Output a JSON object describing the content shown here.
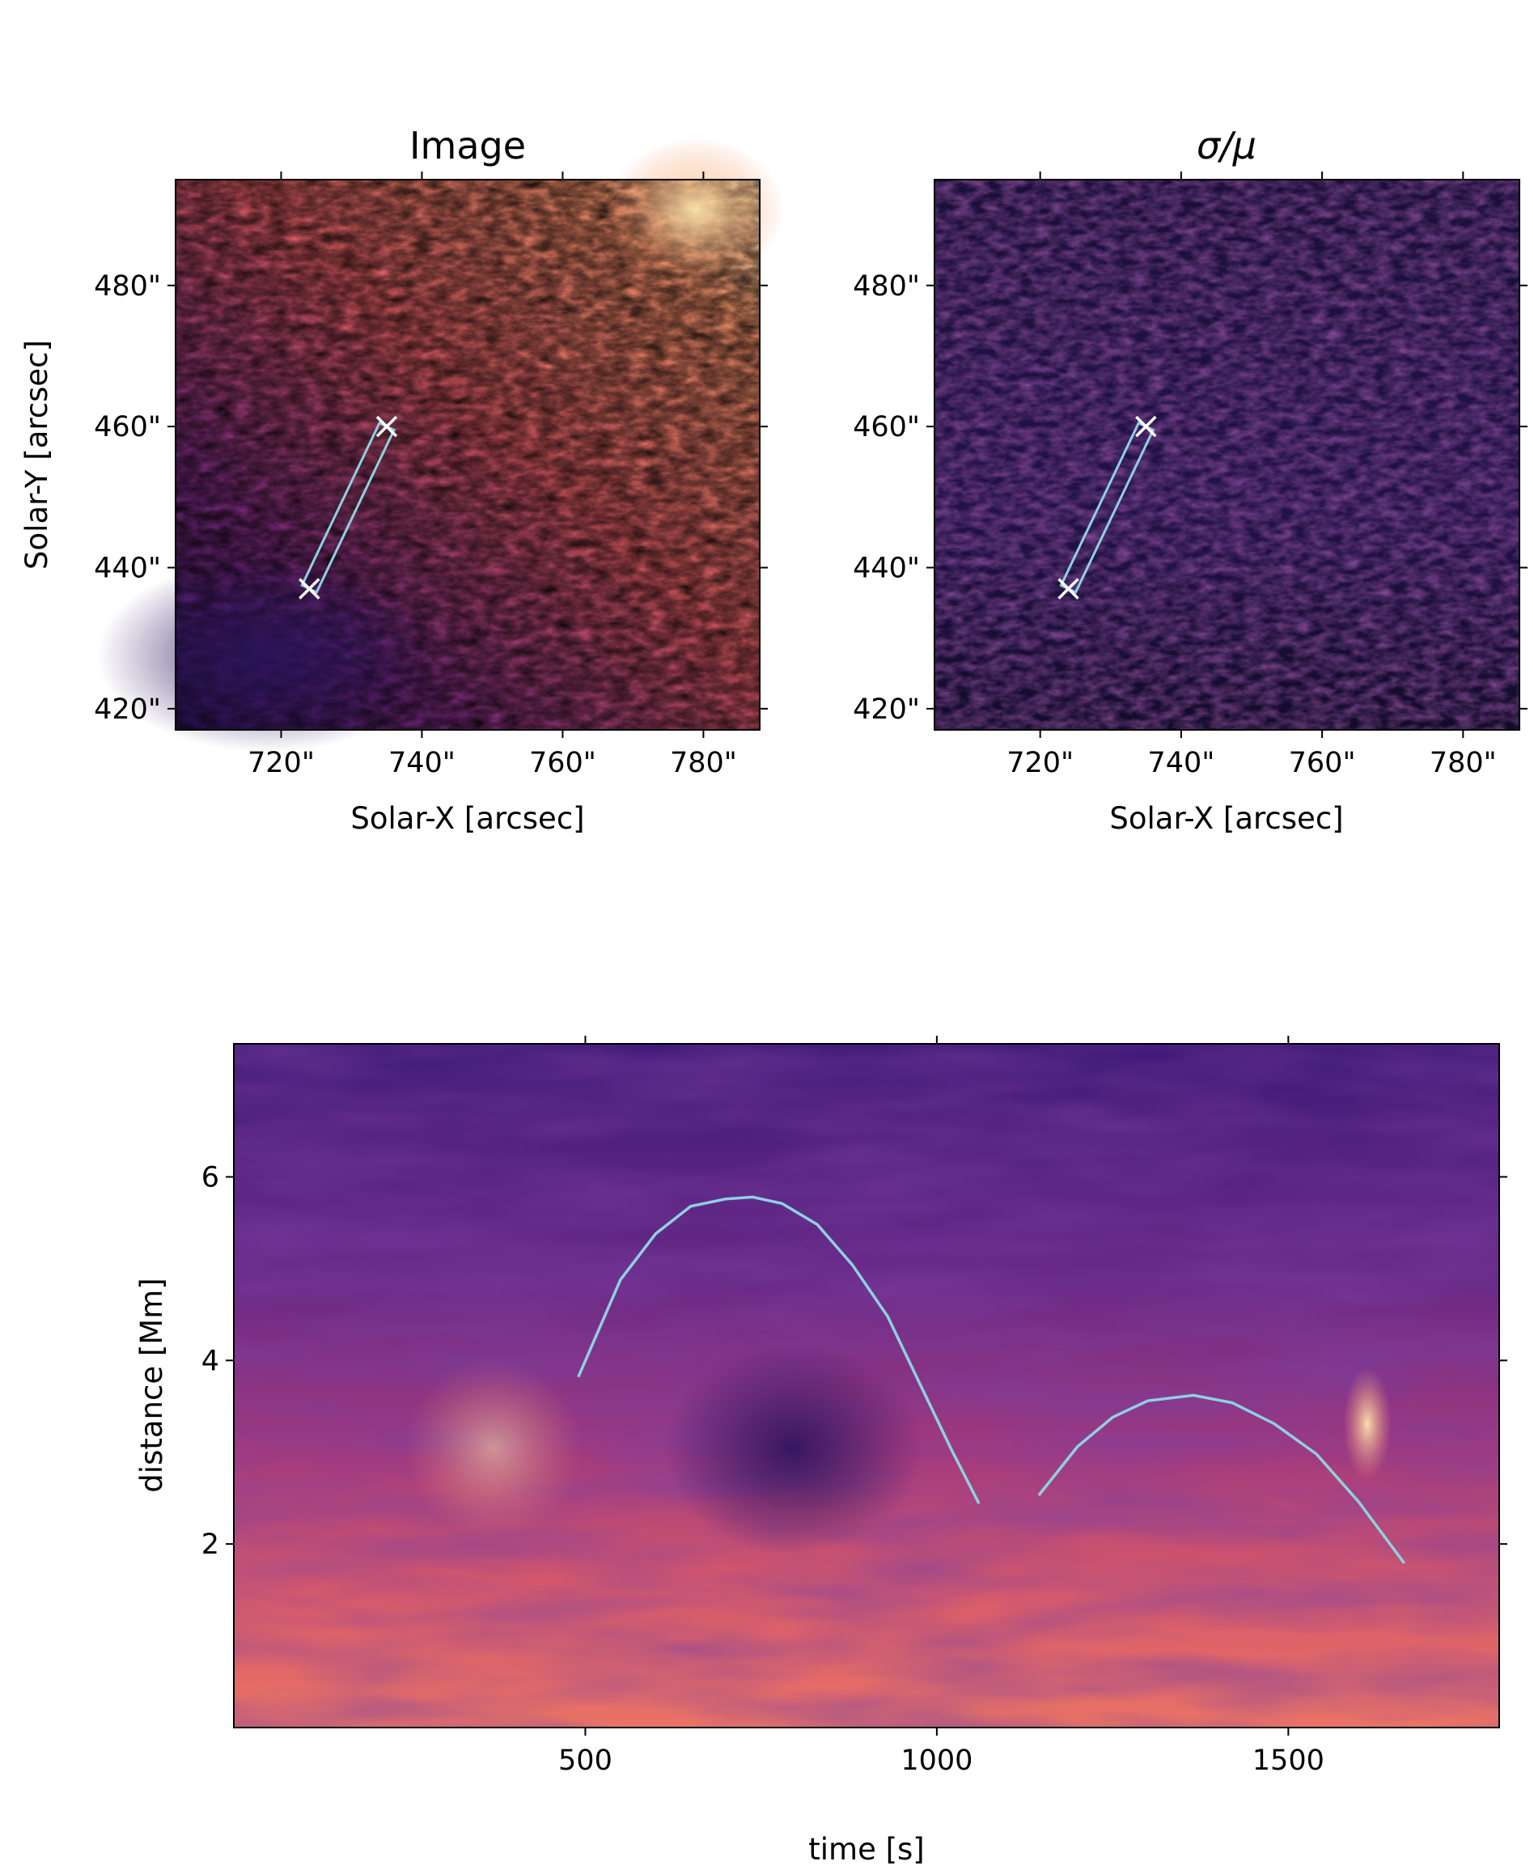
{
  "chart_data": [
    {
      "type": "heatmap",
      "title": "Image",
      "xlabel": "Solar-X [arcsec]",
      "ylabel": "Solar-Y [arcsec]",
      "xlim": [
        705,
        788
      ],
      "ylim": [
        417,
        495
      ],
      "x_ticks": [
        720,
        740,
        760,
        780
      ],
      "x_tick_labels": [
        "720\"",
        "740\"",
        "760\"",
        "780\""
      ],
      "y_ticks": [
        420,
        440,
        460,
        480
      ],
      "y_tick_labels": [
        "420\"",
        "440\"",
        "460\"",
        "480\""
      ],
      "colormap": "magma",
      "slit": {
        "start": [
          724,
          437
        ],
        "end": [
          735,
          460
        ],
        "marker": "x",
        "color": "#8fd0e0"
      }
    },
    {
      "type": "heatmap",
      "title": "σ/μ",
      "xlabel": "Solar-X [arcsec]",
      "ylabel": "",
      "xlim": [
        705,
        788
      ],
      "ylim": [
        417,
        495
      ],
      "x_ticks": [
        720,
        740,
        760,
        780
      ],
      "x_tick_labels": [
        "720\"",
        "740\"",
        "760\"",
        "780\""
      ],
      "y_ticks": [
        420,
        440,
        460,
        480
      ],
      "y_tick_labels": [
        "420\"",
        "440\"",
        "460\"",
        "480\""
      ],
      "colormap": "magma",
      "slit": {
        "start": [
          724,
          437
        ],
        "end": [
          735,
          460
        ],
        "marker": "x",
        "color": "#8fd0e0"
      }
    },
    {
      "type": "heatmap",
      "title": "",
      "xlabel": "time [s]",
      "ylabel": "distance [Mm]",
      "xlim": [
        0,
        1800
      ],
      "ylim": [
        0,
        7.45
      ],
      "x_ticks": [
        500,
        1000,
        1500
      ],
      "x_tick_labels": [
        "500",
        "1000",
        "1500"
      ],
      "y_ticks": [
        2,
        4,
        6
      ],
      "y_tick_labels": [
        "2",
        "4",
        "6"
      ],
      "colormap": "magma",
      "series": [
        {
          "x": [
            490,
            550,
            600,
            650,
            700,
            738,
            780,
            830,
            880,
            930,
            980,
            1020,
            1060
          ],
          "y": [
            3.82,
            4.88,
            5.38,
            5.68,
            5.76,
            5.78,
            5.71,
            5.48,
            5.04,
            4.48,
            3.68,
            3.04,
            2.44
          ],
          "color": "#8fd0e0"
        },
        {
          "x": [
            1145,
            1200,
            1250,
            1300,
            1365,
            1420,
            1480,
            1540,
            1600,
            1665
          ],
          "y": [
            2.53,
            3.06,
            3.38,
            3.56,
            3.62,
            3.54,
            3.31,
            2.98,
            2.46,
            1.79
          ],
          "color": "#8fd0e0"
        }
      ]
    }
  ]
}
